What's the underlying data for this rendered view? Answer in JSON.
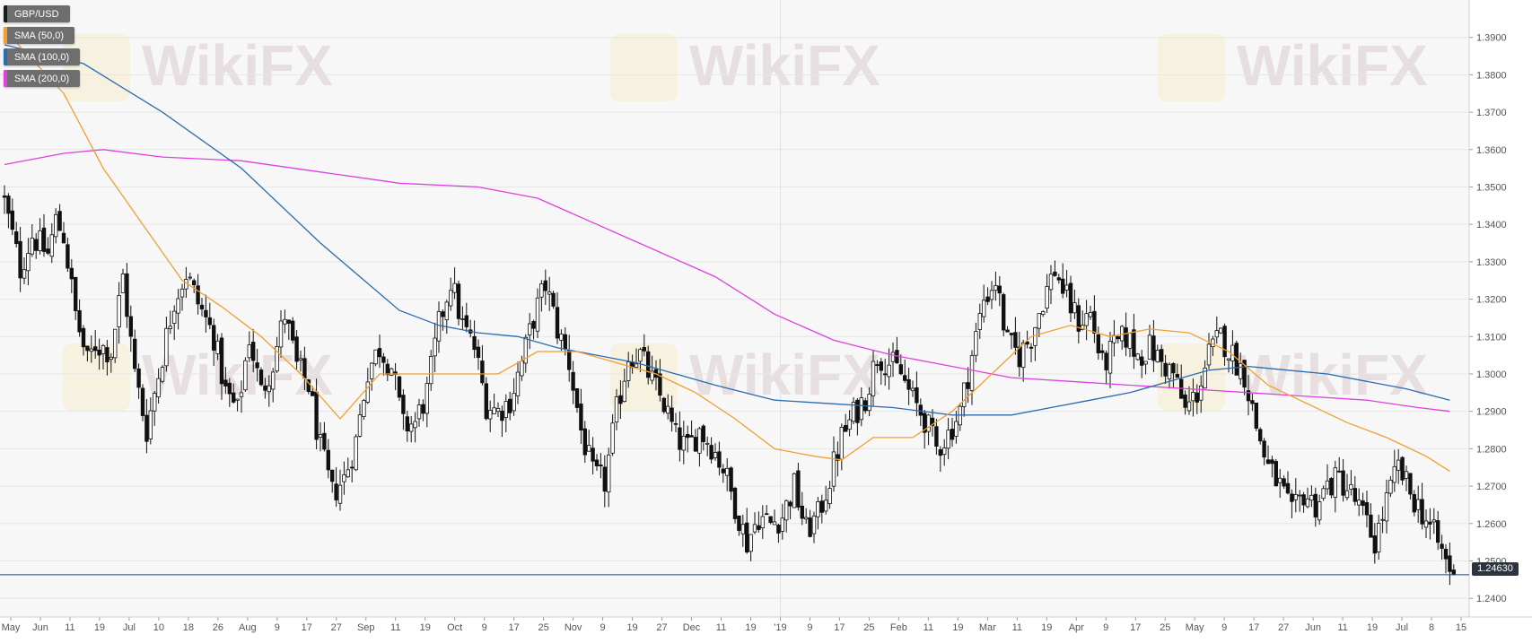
{
  "chart_data": {
    "type": "candlestick",
    "symbol": "GBP/USD",
    "ylim": [
      1.235,
      1.4
    ],
    "y_ticks": [
      "1.2400",
      "1.2500",
      "1.2600",
      "1.2700",
      "1.2800",
      "1.2900",
      "1.3000",
      "1.3100",
      "1.3200",
      "1.3300",
      "1.3400",
      "1.3500",
      "1.3600",
      "1.3700",
      "1.3800",
      "1.3900"
    ],
    "x_ticks": [
      "May",
      "Jun",
      "11",
      "19",
      "Jul",
      "10",
      "18",
      "26",
      "Aug",
      "9",
      "17",
      "27",
      "Sep",
      "11",
      "19",
      "Oct",
      "9",
      "17",
      "25",
      "Nov",
      "9",
      "19",
      "27",
      "Dec",
      "11",
      "19",
      "'19",
      "9",
      "17",
      "25",
      "Feb",
      "11",
      "19",
      "Mar",
      "11",
      "19",
      "Apr",
      "9",
      "17",
      "25",
      "May",
      "9",
      "17",
      "27",
      "Jun",
      "11",
      "19",
      "Jul",
      "8",
      "15"
    ],
    "current_price": "1.24630",
    "current_price_value": 1.2463,
    "grid": true,
    "legend_position": "top-left",
    "legend": [
      {
        "label": "GBP/USD",
        "color": "#1a1a1a"
      },
      {
        "label": "SMA (50,0)",
        "color": "#f0a030"
      },
      {
        "label": "SMA (100,0)",
        "color": "#2a6bb0"
      },
      {
        "label": "SMA (200,0)",
        "color": "#e040e0"
      }
    ],
    "watermark": "WikiFX",
    "close_path": [
      [
        0,
        1.346
      ],
      [
        4,
        1.328
      ],
      [
        7,
        1.337
      ],
      [
        11,
        1.332
      ],
      [
        13,
        1.341
      ],
      [
        15,
        1.337
      ],
      [
        18,
        1.316
      ],
      [
        21,
        1.303
      ],
      [
        23,
        1.308
      ],
      [
        27,
        1.306
      ],
      [
        30,
        1.326
      ],
      [
        33,
        1.3
      ],
      [
        36,
        1.285
      ],
      [
        40,
        1.305
      ],
      [
        43,
        1.32
      ],
      [
        46,
        1.327
      ],
      [
        49,
        1.319
      ],
      [
        53,
        1.31
      ],
      [
        56,
        1.295
      ],
      [
        59,
        1.29
      ],
      [
        62,
        1.31
      ],
      [
        65,
        1.295
      ],
      [
        68,
        1.303
      ],
      [
        71,
        1.316
      ],
      [
        74,
        1.302
      ],
      [
        77,
        1.297
      ],
      [
        80,
        1.28
      ],
      [
        83,
        1.268
      ],
      [
        86,
        1.272
      ],
      [
        89,
        1.282
      ],
      [
        92,
        1.301
      ],
      [
        95,
        1.307
      ],
      [
        98,
        1.302
      ],
      [
        101,
        1.286
      ],
      [
        104,
        1.287
      ],
      [
        107,
        1.295
      ],
      [
        110,
        1.313
      ],
      [
        113,
        1.325
      ],
      [
        116,
        1.313
      ],
      [
        119,
        1.307
      ],
      [
        122,
        1.292
      ],
      [
        125,
        1.29
      ],
      [
        128,
        1.293
      ],
      [
        131,
        1.303
      ],
      [
        134,
        1.315
      ],
      [
        137,
        1.324
      ],
      [
        140,
        1.312
      ],
      [
        143,
        1.303
      ],
      [
        146,
        1.285
      ],
      [
        149,
        1.273
      ],
      [
        152,
        1.271
      ],
      [
        155,
        1.29
      ],
      [
        158,
        1.305
      ],
      [
        161,
        1.305
      ],
      [
        164,
        1.298
      ],
      [
        167,
        1.292
      ],
      [
        170,
        1.283
      ],
      [
        173,
        1.28
      ],
      [
        176,
        1.285
      ],
      [
        179,
        1.281
      ],
      [
        182,
        1.275
      ],
      [
        185,
        1.265
      ],
      [
        188,
        1.255
      ],
      [
        191,
        1.262
      ],
      [
        194,
        1.26
      ],
      [
        197,
        1.262
      ],
      [
        200,
        1.27
      ],
      [
        203,
        1.258
      ],
      [
        206,
        1.262
      ],
      [
        209,
        1.272
      ],
      [
        212,
        1.283
      ],
      [
        215,
        1.289
      ],
      [
        218,
        1.294
      ],
      [
        221,
        1.305
      ],
      [
        224,
        1.303
      ],
      [
        227,
        1.3
      ],
      [
        230,
        1.293
      ],
      [
        233,
        1.288
      ],
      [
        236,
        1.28
      ],
      [
        239,
        1.284
      ],
      [
        242,
        1.29
      ],
      [
        245,
        1.305
      ],
      [
        248,
        1.32
      ],
      [
        251,
        1.325
      ],
      [
        254,
        1.308
      ],
      [
        257,
        1.305
      ],
      [
        260,
        1.31
      ],
      [
        263,
        1.32
      ],
      [
        266,
        1.328
      ],
      [
        269,
        1.32
      ],
      [
        272,
        1.314
      ],
      [
        275,
        1.316
      ],
      [
        278,
        1.302
      ],
      [
        281,
        1.307
      ],
      [
        284,
        1.31
      ],
      [
        287,
        1.305
      ],
      [
        290,
        1.307
      ],
      [
        293,
        1.303
      ],
      [
        296,
        1.3
      ],
      [
        299,
        1.29
      ],
      [
        302,
        1.295
      ],
      [
        305,
        1.305
      ],
      [
        308,
        1.31
      ],
      [
        311,
        1.305
      ],
      [
        314,
        1.3
      ],
      [
        317,
        1.286
      ],
      [
        320,
        1.275
      ],
      [
        323,
        1.27
      ],
      [
        326,
        1.262
      ],
      [
        329,
        1.268
      ],
      [
        332,
        1.265
      ],
      [
        335,
        1.27
      ],
      [
        338,
        1.272
      ],
      [
        341,
        1.268
      ],
      [
        344,
        1.262
      ],
      [
        347,
        1.255
      ],
      [
        350,
        1.266
      ],
      [
        353,
        1.275
      ],
      [
        356,
        1.268
      ],
      [
        359,
        1.263
      ],
      [
        362,
        1.257
      ],
      [
        365,
        1.25
      ],
      [
        367,
        1.2463
      ]
    ],
    "sma_50": [
      [
        0,
        1.392
      ],
      [
        15,
        1.375
      ],
      [
        25,
        1.355
      ],
      [
        35,
        1.34
      ],
      [
        45,
        1.325
      ],
      [
        55,
        1.318
      ],
      [
        65,
        1.31
      ],
      [
        75,
        1.3
      ],
      [
        85,
        1.288
      ],
      [
        95,
        1.3
      ],
      [
        105,
        1.3
      ],
      [
        115,
        1.3
      ],
      [
        125,
        1.3
      ],
      [
        135,
        1.306
      ],
      [
        145,
        1.306
      ],
      [
        155,
        1.303
      ],
      [
        165,
        1.3
      ],
      [
        175,
        1.295
      ],
      [
        185,
        1.288
      ],
      [
        195,
        1.28
      ],
      [
        205,
        1.278
      ],
      [
        212,
        1.277
      ],
      [
        220,
        1.283
      ],
      [
        230,
        1.283
      ],
      [
        240,
        1.29
      ],
      [
        250,
        1.3
      ],
      [
        260,
        1.31
      ],
      [
        270,
        1.313
      ],
      [
        280,
        1.31
      ],
      [
        290,
        1.312
      ],
      [
        300,
        1.311
      ],
      [
        310,
        1.306
      ],
      [
        320,
        1.297
      ],
      [
        330,
        1.292
      ],
      [
        340,
        1.287
      ],
      [
        350,
        1.283
      ],
      [
        360,
        1.278
      ],
      [
        366,
        1.274
      ]
    ],
    "sma_100": [
      [
        0,
        1.388
      ],
      [
        20,
        1.383
      ],
      [
        40,
        1.37
      ],
      [
        60,
        1.355
      ],
      [
        80,
        1.335
      ],
      [
        100,
        1.317
      ],
      [
        110,
        1.313
      ],
      [
        120,
        1.311
      ],
      [
        130,
        1.31
      ],
      [
        140,
        1.307
      ],
      [
        150,
        1.305
      ],
      [
        160,
        1.303
      ],
      [
        170,
        1.3
      ],
      [
        180,
        1.297
      ],
      [
        195,
        1.293
      ],
      [
        210,
        1.292
      ],
      [
        225,
        1.291
      ],
      [
        240,
        1.289
      ],
      [
        255,
        1.289
      ],
      [
        265,
        1.291
      ],
      [
        275,
        1.293
      ],
      [
        285,
        1.295
      ],
      [
        295,
        1.298
      ],
      [
        305,
        1.301
      ],
      [
        315,
        1.302
      ],
      [
        325,
        1.301
      ],
      [
        335,
        1.3
      ],
      [
        345,
        1.298
      ],
      [
        355,
        1.296
      ],
      [
        366,
        1.293
      ]
    ],
    "sma_200": [
      [
        0,
        1.356
      ],
      [
        15,
        1.359
      ],
      [
        25,
        1.36
      ],
      [
        40,
        1.358
      ],
      [
        60,
        1.357
      ],
      [
        80,
        1.354
      ],
      [
        100,
        1.351
      ],
      [
        120,
        1.35
      ],
      [
        135,
        1.347
      ],
      [
        150,
        1.34
      ],
      [
        165,
        1.333
      ],
      [
        180,
        1.326
      ],
      [
        195,
        1.316
      ],
      [
        210,
        1.309
      ],
      [
        225,
        1.305
      ],
      [
        240,
        1.302
      ],
      [
        255,
        1.299
      ],
      [
        270,
        1.298
      ],
      [
        285,
        1.297
      ],
      [
        300,
        1.296
      ],
      [
        315,
        1.295
      ],
      [
        330,
        1.294
      ],
      [
        345,
        1.293
      ],
      [
        358,
        1.291
      ],
      [
        366,
        1.29
      ]
    ]
  }
}
